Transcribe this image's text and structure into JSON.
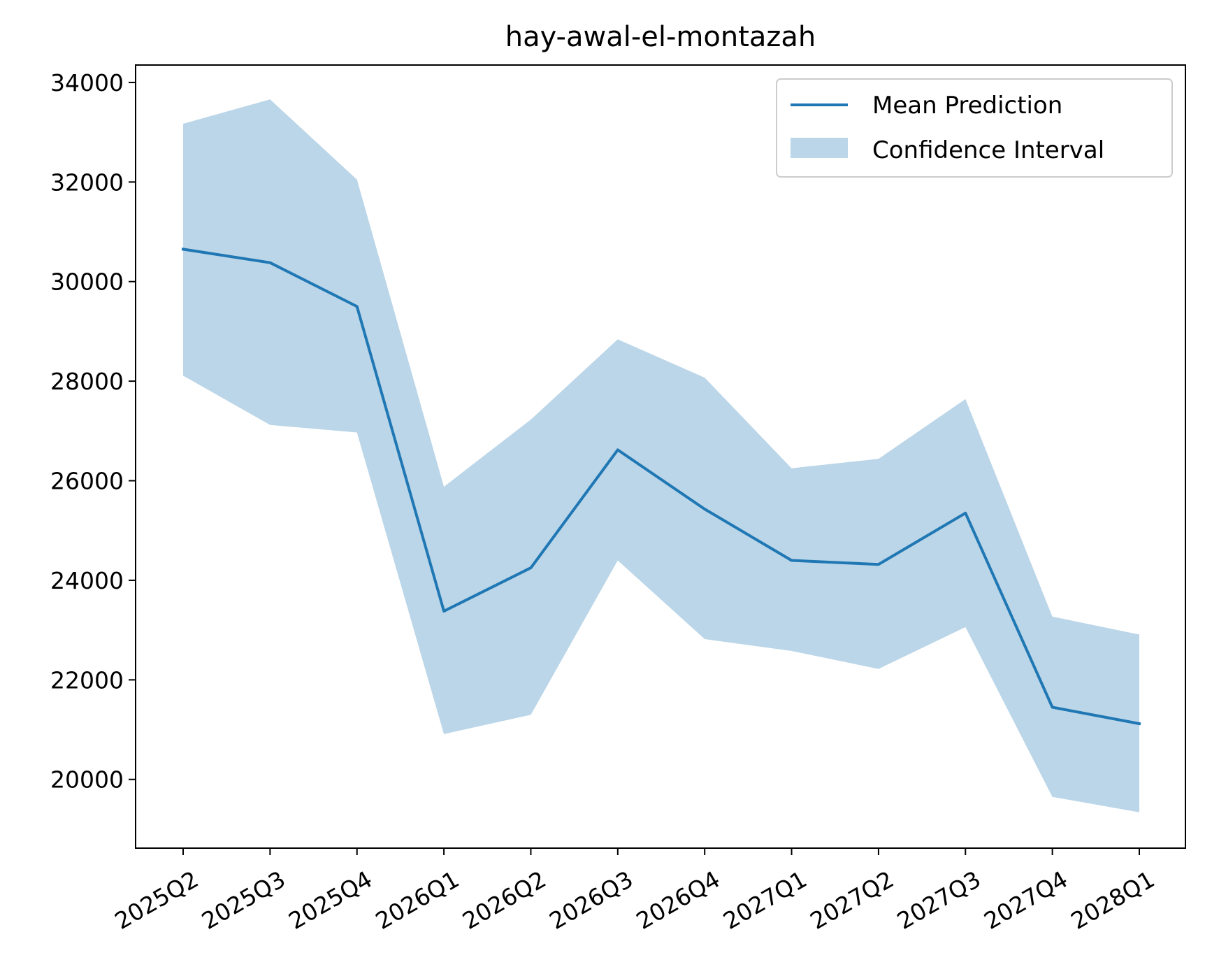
{
  "chart_data": {
    "type": "line",
    "title": "hay-awal-el-montazah",
    "xlabel": "",
    "ylabel": "",
    "categories": [
      "2025Q2",
      "2025Q3",
      "2025Q4",
      "2026Q1",
      "2026Q2",
      "2026Q3",
      "2026Q4",
      "2027Q1",
      "2027Q2",
      "2027Q3",
      "2027Q4",
      "2028Q1"
    ],
    "series": [
      {
        "name": "Mean Prediction",
        "kind": "line",
        "color": "#1f77b4",
        "values": [
          30650,
          30380,
          29500,
          23380,
          24250,
          26620,
          25430,
          24400,
          24320,
          25350,
          21450,
          21120
        ]
      },
      {
        "name": "Confidence Interval",
        "kind": "band",
        "color": "#1f77b4",
        "opacity": 0.3,
        "upper": [
          33170,
          33660,
          32050,
          25880,
          27230,
          28840,
          28070,
          26250,
          26440,
          27640,
          23270,
          22910
        ],
        "lower": [
          28110,
          27120,
          26970,
          20910,
          21300,
          24400,
          22820,
          22580,
          22220,
          23060,
          19650,
          19340
        ]
      }
    ],
    "yticks": [
      20000,
      22000,
      24000,
      26000,
      28000,
      30000,
      32000,
      34000
    ],
    "ylim": [
      18620,
      34350
    ],
    "grid": false,
    "legend": "top-right",
    "xtick_rotation": 30
  }
}
